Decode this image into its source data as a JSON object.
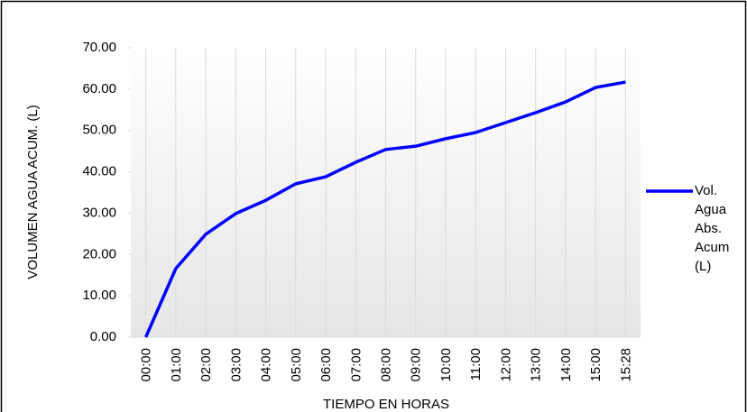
{
  "chart_data": {
    "type": "line",
    "x_label": "TIEMPO EN HORAS",
    "y_label": "VOLUMEN AGUA ACUM. (L)",
    "categories": [
      "00:00",
      "01:00",
      "02:00",
      "03:00",
      "04:00",
      "05:00",
      "06:00",
      "07:00",
      "08:00",
      "09:00",
      "10:00",
      "11:00",
      "12:00",
      "13:00",
      "14:00",
      "15:00",
      "15:28"
    ],
    "series": [
      {
        "name": "Vol. Agua Abs. Acum (L)",
        "color": "#0000ff",
        "values": [
          0,
          16.6,
          24.9,
          29.9,
          33.1,
          37.1,
          38.8,
          42.3,
          45.4,
          46.2,
          48.0,
          49.5,
          51.9,
          54.3,
          56.9,
          60.4,
          61.7
        ]
      }
    ],
    "ylim": [
      0,
      70
    ],
    "yticks": [
      {
        "value": 0,
        "label": "0.00"
      },
      {
        "value": 10,
        "label": "10.00"
      },
      {
        "value": 20,
        "label": "20.00"
      },
      {
        "value": 30,
        "label": "30.00"
      },
      {
        "value": 40,
        "label": "40.00"
      },
      {
        "value": 50,
        "label": "50.00"
      },
      {
        "value": 60,
        "label": "60.00"
      },
      {
        "value": 70,
        "label": "70.00"
      }
    ],
    "legend": "right"
  }
}
